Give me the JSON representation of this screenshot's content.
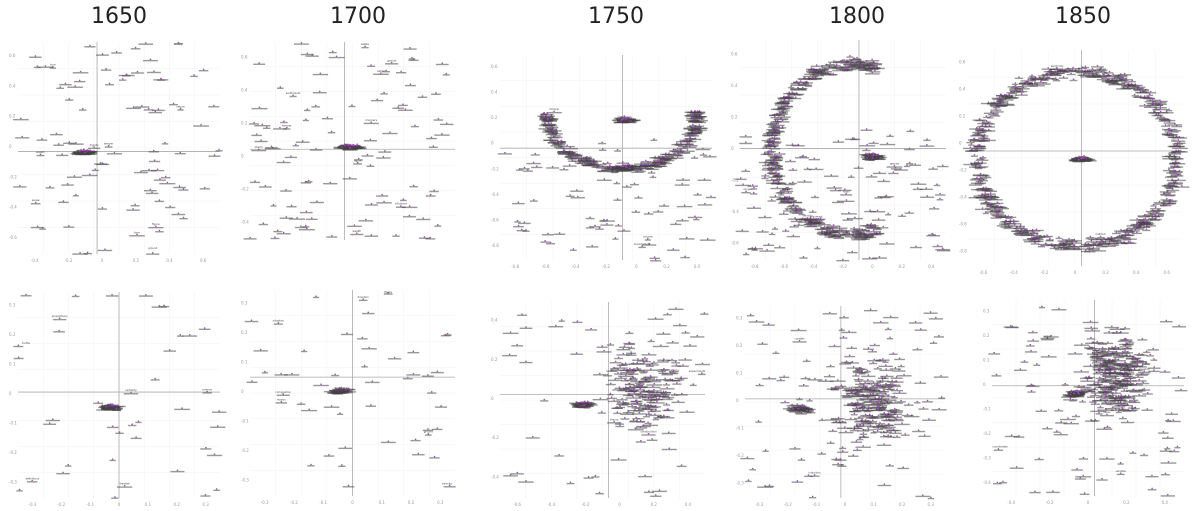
{
  "chart_data": {
    "type": "scatter",
    "columns": [
      "1650",
      "1700",
      "1750",
      "1800",
      "1850"
    ],
    "grid": true,
    "point_color": "#a64dbf",
    "label_color": "#444444",
    "axis_color": "#aaaaaa",
    "panels": [
      {
        "id": "1650-top",
        "column": "1650",
        "row": 1,
        "xlim": [
          -0.45,
          0.7
        ],
        "ylim": [
          -0.75,
          0.8
        ],
        "xticks": [
          "-0.4",
          "-0.2",
          "0",
          "0.2",
          "0.4",
          "0.6"
        ],
        "yticks": [
          "0.6",
          "0.4",
          "0.2",
          "0",
          "-0.2",
          "-0.4",
          "-0.6"
        ],
        "pattern": "scatter",
        "n": 95,
        "cluster": {
          "x": -0.07,
          "y": 0.0,
          "r": 0.06
        },
        "labels": [
          "true",
          "wealth",
          "dignity",
          "form",
          "ground",
          "temper",
          "nature",
          "sense",
          "bodily",
          "figure"
        ]
      },
      {
        "id": "1700-top",
        "column": "1700",
        "row": 1,
        "xlim": [
          -0.3,
          0.35
        ],
        "ylim": [
          -0.55,
          0.65
        ],
        "xticks": [],
        "yticks": [
          "0.6",
          "0.4",
          "0.2",
          "0",
          "-0.2",
          "-0.4"
        ],
        "pattern": "scatter",
        "n": 110,
        "cluster": {
          "x": 0.02,
          "y": 0.02,
          "r": 0.05
        },
        "labels": [
          "figure",
          "manners",
          "wealth",
          "ground",
          "temper",
          "sentiments",
          "influence",
          "nation",
          "estate",
          "liberty"
        ]
      },
      {
        "id": "1750-top",
        "column": "1750",
        "row": 1,
        "xlim": [
          -0.82,
          0.6
        ],
        "ylim": [
          -0.84,
          0.7
        ],
        "xticks": [
          "-0.8",
          "-0.6",
          "-0.4",
          "-0.2",
          "0",
          "0.2",
          "0.4"
        ],
        "yticks": [
          "0.6",
          "0.4",
          "0.2",
          "0",
          "-0.2",
          "-0.4",
          "-0.6",
          "-0.8"
        ],
        "pattern": "arc",
        "n": 380,
        "arc": {
          "cx": 0.0,
          "cy": 0.25,
          "rx": 0.5,
          "ry": 0.4,
          "from": 175,
          "to": 365
        },
        "cluster": {
          "x": 0.02,
          "y": 0.22,
          "r": 0.08
        },
        "cluster2": {
          "x": 0.02,
          "y": -0.14,
          "r": 0.06
        },
        "labels": [
          "mineral",
          "opinion",
          "manufacture",
          "chemistry",
          "volume",
          "property",
          "design",
          "parts",
          "medicine",
          "wealth"
        ]
      },
      {
        "id": "1800-top",
        "column": "1800",
        "row": 1,
        "xlim": [
          -0.82,
          0.6
        ],
        "ylim": [
          -0.72,
          0.7
        ],
        "xticks": [
          "-0.8",
          "-0.6",
          "-0.4",
          "-0.2",
          "0",
          "0.2",
          "0.4"
        ],
        "yticks": [
          "0.6",
          "0.4",
          "0.2",
          "0",
          "-0.2",
          "-0.4",
          "-0.6"
        ],
        "pattern": "crescent",
        "n": 520,
        "arc": {
          "cx": -0.05,
          "cy": 0.0,
          "rx": 0.55,
          "ry": 0.55,
          "from": 70,
          "to": 290
        },
        "cluster": {
          "x": 0.1,
          "y": -0.05,
          "r": 0.07
        },
        "labels": [
          "phosphate",
          "carbonate",
          "rocks",
          "strata",
          "fossil",
          "species",
          "property",
          "argument",
          "velocity",
          "oxygen"
        ]
      },
      {
        "id": "1850-top",
        "column": "1850",
        "row": 1,
        "xlim": [
          -0.7,
          0.62
        ],
        "ylim": [
          -0.82,
          0.72
        ],
        "xticks": [
          "-0.6",
          "-0.4",
          "-0.2",
          "0",
          "0.2",
          "0.4",
          "0.6"
        ],
        "yticks": [
          "0.6",
          "0.4",
          "0.2",
          "0",
          "-0.2",
          "-0.4",
          "-0.6",
          "-0.8"
        ],
        "pattern": "ring",
        "n": 640,
        "arc": {
          "cx": -0.03,
          "cy": -0.05,
          "rx": 0.62,
          "ry": 0.62,
          "from": 0,
          "to": 360
        },
        "cluster": {
          "x": 0.0,
          "y": -0.05,
          "r": 0.07
        },
        "labels": [
          "ratio",
          "evolution",
          "electricity",
          "organism",
          "function",
          "molecule",
          "variation",
          "method",
          "energy",
          "cells"
        ]
      },
      {
        "id": "1650-bottom",
        "column": "1650",
        "row": 2,
        "xlim": [
          -0.36,
          0.36
        ],
        "ylim": [
          -0.36,
          0.34
        ],
        "xticks": [
          "-0.3",
          "-0.2",
          "-0.1",
          "0",
          "0.1",
          "0.2",
          "0.3"
        ],
        "yticks": [
          "0.3",
          "0.2",
          "0.1",
          "0",
          "-0.1",
          "-0.2",
          "-0.3"
        ],
        "pattern": "scatter",
        "n": 40,
        "cluster": {
          "x": -0.03,
          "y": -0.05,
          "r": 0.035
        },
        "labels": [
          "definitions",
          "propositions",
          "treatise",
          "truths",
          "certainty",
          "science",
          "parts",
          "notion"
        ]
      },
      {
        "id": "1700-bottom",
        "column": "1700",
        "row": 2,
        "xlim": [
          -0.33,
          0.33
        ],
        "ylim": [
          -0.45,
          0.33
        ],
        "xticks": [
          "-0.3",
          "-0.2",
          "-0.1",
          "0",
          "0.1",
          "0.2",
          "0.3"
        ],
        "yticks": [
          "0.3",
          "0.2",
          "0.1",
          "0",
          "-0.1",
          "-0.2",
          "-0.3"
        ],
        "pattern": "scatter",
        "n": 50,
        "cluster": {
          "x": -0.04,
          "y": -0.05,
          "r": 0.035
        },
        "labels": [
          "ground",
          "direction",
          "motion",
          "situation",
          "composition",
          "figure",
          "velocity",
          "solid",
          "equation",
          "distance"
        ]
      },
      {
        "id": "1750-bottom",
        "column": "1750",
        "row": 2,
        "xlim": [
          -0.62,
          0.55
        ],
        "ylim": [
          -0.58,
          0.52
        ],
        "xticks": [
          "-0.6",
          "-0.4",
          "-0.2",
          "0",
          "0.2",
          "0.4"
        ],
        "yticks": [
          "0.4",
          "0.2",
          "0",
          "-0.2",
          "-0.4"
        ],
        "pattern": "dense",
        "n": 260,
        "dense": {
          "x": 0.2,
          "y": 0.05,
          "rx": 0.28,
          "ry": 0.35
        },
        "cluster": {
          "x": -0.15,
          "y": -0.05,
          "r": 0.06
        },
        "labels": [
          "dissolution",
          "observations",
          "theory",
          "power",
          "construction",
          "element",
          "experiments",
          "mixture",
          "solution"
        ]
      },
      {
        "id": "1800-bottom",
        "column": "1800",
        "row": 2,
        "xlim": [
          -0.35,
          0.38
        ],
        "ylim": [
          -0.32,
          0.3
        ],
        "xticks": [
          "-0.3",
          "-0.2",
          "-0.1",
          "0",
          "0.1",
          "0.2",
          "0.3"
        ],
        "yticks": [
          "0.3",
          "0.2",
          "0.1",
          "0",
          "-0.1",
          "-0.2",
          "-0.3"
        ],
        "pattern": "dense",
        "n": 330,
        "dense": {
          "x": 0.12,
          "y": 0.0,
          "rx": 0.18,
          "ry": 0.22
        },
        "cluster": {
          "x": -0.15,
          "y": -0.03,
          "r": 0.05
        },
        "labels": [
          "variation",
          "current",
          "volume",
          "conductor",
          "crystals",
          "induction",
          "resistance",
          "intensity"
        ]
      },
      {
        "id": "1850-bottom",
        "column": "1850",
        "row": 2,
        "xlim": [
          -0.55,
          0.48
        ],
        "ylim": [
          -0.45,
          0.35
        ],
        "xticks": [
          "-0.4",
          "-0.2",
          "0",
          "0.2",
          "0.4"
        ],
        "yticks": [
          "0.3",
          "0.2",
          "0.1",
          "0",
          "-0.1",
          "-0.2",
          "-0.3",
          "-0.4"
        ],
        "pattern": "dense",
        "n": 380,
        "dense": {
          "x": 0.12,
          "y": 0.05,
          "rx": 0.25,
          "ry": 0.25
        },
        "cluster": {
          "x": -0.1,
          "y": -0.03,
          "r": 0.05
        },
        "labels": [
          "ratios",
          "dimension",
          "coordinates",
          "function",
          "equation",
          "variable",
          "integral",
          "series",
          "limit"
        ]
      }
    ]
  }
}
